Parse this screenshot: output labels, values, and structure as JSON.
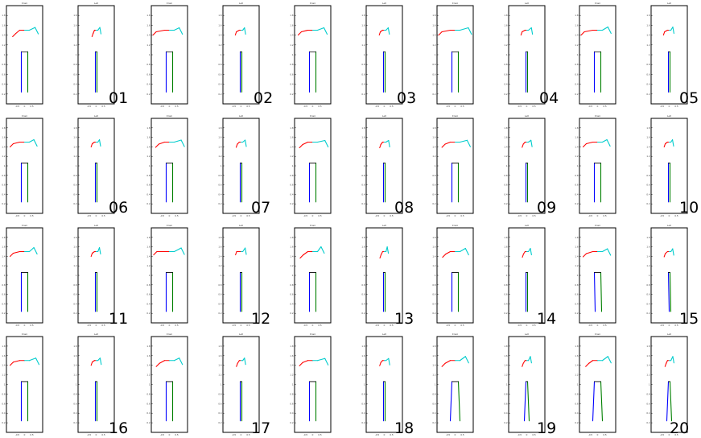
{
  "panel_titles": {
    "front": "Front",
    "left": "Left"
  },
  "x_ticks": [
    "-0.5",
    "0",
    "0.5"
  ],
  "y_ticks": [
    "0.2",
    "0.4",
    "0.6",
    "0.8",
    "1",
    "1.2",
    "1.4",
    "1.6",
    "1.8"
  ],
  "colors": {
    "right_arm": "#ff0000",
    "left_arm": "#00cccc",
    "right_leg": "#0000ff",
    "left_leg": "#008000",
    "pelvis": "#000000"
  },
  "poses": [
    {
      "label": "01",
      "front": {
        "ra": [
          [
            5,
            2
          ],
          [
            40,
            40
          ]
        ],
        "la": [
          [
            5,
            2
          ],
          [
            -15,
            -8
          ]
        ],
        "rl": [
          [
            0,
            0
          ],
          [
            0,
            0
          ]
        ],
        "ll": [
          [
            0,
            0
          ],
          [
            0,
            0
          ]
        ]
      }
    },
    {
      "label": "02",
      "front": {
        "ra": [
          [
            0,
            0
          ],
          [
            -30,
            0
          ]
        ],
        "la": [
          [
            0,
            0
          ],
          [
            -30,
            0
          ]
        ],
        "rl": [
          [
            0,
            0
          ],
          [
            0,
            0
          ]
        ],
        "ll": [
          [
            0,
            0
          ],
          [
            0,
            0
          ]
        ]
      }
    },
    {
      "label": "03",
      "front": {
        "ra": [
          [
            0,
            0
          ],
          [
            0,
            0
          ]
        ],
        "la": [
          [
            0,
            0
          ],
          [
            0,
            0
          ]
        ],
        "rl": [
          [
            0,
            0
          ],
          [
            0,
            0
          ]
        ],
        "ll": [
          [
            0,
            0
          ],
          [
            0,
            0
          ]
        ]
      }
    },
    {
      "label": "04",
      "front": {
        "ra": [
          [
            0,
            0
          ],
          [
            -30,
            0
          ]
        ],
        "la": [
          [
            0,
            0
          ],
          [
            40,
            0
          ]
        ],
        "rl": [
          [
            0,
            0
          ],
          [
            0,
            0
          ]
        ],
        "ll": [
          [
            0,
            0
          ],
          [
            0,
            0
          ]
        ]
      }
    },
    {
      "label": "05",
      "front": {
        "ra": [
          [
            0,
            0
          ],
          [
            -30,
            0
          ]
        ],
        "la": [
          [
            0,
            0
          ],
          [
            -20,
            -20
          ]
        ],
        "rl": [
          [
            0,
            0
          ],
          [
            0,
            0
          ]
        ],
        "ll": [
          [
            0,
            0
          ],
          [
            0,
            0
          ]
        ]
      }
    },
    {
      "label": "06",
      "front": {
        "ra": [
          [
            0,
            0
          ],
          [
            0,
            0
          ]
        ],
        "la": [
          [
            0,
            0
          ],
          [
            -40,
            0
          ]
        ],
        "rl": [
          [
            0,
            0
          ],
          [
            0,
            0
          ]
        ],
        "ll": [
          [
            0,
            0
          ],
          [
            0,
            0
          ]
        ]
      }
    },
    {
      "label": "07",
      "front": {
        "ra": [
          [
            0,
            0
          ],
          [
            10,
            10
          ]
        ],
        "la": [
          [
            0,
            0
          ],
          [
            10,
            10
          ]
        ],
        "rl": [
          [
            0,
            0
          ],
          [
            0,
            0
          ]
        ],
        "ll": [
          [
            0,
            0
          ],
          [
            0,
            0
          ]
        ]
      }
    },
    {
      "label": "08",
      "front": {
        "ra": [
          [
            0,
            0
          ],
          [
            20,
            20
          ]
        ],
        "la": [
          [
            0,
            0
          ],
          [
            20,
            20
          ]
        ],
        "rl": [
          [
            0,
            0
          ],
          [
            0,
            0
          ]
        ],
        "ll": [
          [
            0,
            0
          ],
          [
            0,
            0
          ]
        ]
      }
    },
    {
      "label": "09",
      "front": {
        "ra": [
          [
            0,
            0
          ],
          [
            20,
            10
          ]
        ],
        "la": [
          [
            0,
            0
          ],
          [
            15,
            15
          ]
        ],
        "rl": [
          [
            0,
            0
          ],
          [
            0,
            0
          ]
        ],
        "ll": [
          [
            0,
            0
          ],
          [
            0,
            0
          ]
        ]
      }
    },
    {
      "label": "10",
      "front": {
        "ra": [
          [
            0,
            0
          ],
          [
            0,
            0
          ]
        ],
        "la": [
          [
            0,
            0
          ],
          [
            -40,
            0
          ]
        ],
        "rl": [
          [
            0,
            0
          ],
          [
            0,
            0
          ]
        ],
        "ll": [
          [
            0,
            0
          ],
          [
            0,
            0
          ]
        ]
      }
    },
    {
      "label": "11",
      "front": {
        "ra": [
          [
            -20,
            0
          ],
          [
            0,
            0
          ]
        ],
        "la": [
          [
            0,
            0
          ],
          [
            -40,
            -40
          ]
        ],
        "rl": [
          [
            0,
            0
          ],
          [
            0,
            0
          ]
        ],
        "ll": [
          [
            0,
            0
          ],
          [
            0,
            0
          ]
        ]
      }
    },
    {
      "label": "12",
      "front": {
        "ra": [
          [
            0,
            0
          ],
          [
            -20,
            -40
          ]
        ],
        "la": [
          [
            0,
            0
          ],
          [
            10,
            -30
          ]
        ],
        "rl": [
          [
            0,
            0
          ],
          [
            0,
            0
          ]
        ],
        "ll": [
          [
            0,
            0
          ],
          [
            0,
            0
          ]
        ]
      }
    },
    {
      "label": "13",
      "front": {
        "ra": [
          [
            0,
            0
          ],
          [
            30,
            40
          ]
        ],
        "la": [
          [
            0,
            0
          ],
          [
            -60,
            -60
          ]
        ],
        "rl": [
          [
            0,
            0
          ],
          [
            0,
            0
          ]
        ],
        "ll": [
          [
            0,
            0
          ],
          [
            0,
            0
          ]
        ]
      }
    },
    {
      "label": "14",
      "front": {
        "ra": [
          [
            0,
            0
          ],
          [
            30,
            20
          ]
        ],
        "la": [
          [
            0,
            0
          ],
          [
            -20,
            -20
          ]
        ],
        "rl": [
          [
            0,
            0
          ],
          [
            0,
            0
          ]
        ],
        "ll": [
          [
            0,
            0
          ],
          [
            0,
            0
          ]
        ]
      }
    },
    {
      "label": "15",
      "front": {
        "ra": [
          [
            0,
            0
          ],
          [
            0,
            10
          ]
        ],
        "la": [
          [
            0,
            0
          ],
          [
            -30,
            -10
          ]
        ],
        "rl": [
          [
            5,
            10
          ],
          [
            0,
            0
          ]
        ],
        "ll": [
          [
            5,
            10
          ],
          [
            15,
            20
          ]
        ]
      }
    },
    {
      "label": "16",
      "front": {
        "ra": [
          [
            0,
            0
          ],
          [
            0,
            0
          ]
        ],
        "la": [
          [
            0,
            0
          ],
          [
            0,
            0
          ]
        ],
        "rl": [
          [
            0,
            -10
          ],
          [
            5,
            10
          ]
        ],
        "ll": [
          [
            0,
            0
          ],
          [
            0,
            0
          ]
        ]
      }
    },
    {
      "label": "17",
      "front": {
        "ra": [
          [
            0,
            0
          ],
          [
            20,
            30
          ]
        ],
        "la": [
          [
            0,
            0
          ],
          [
            -30,
            0
          ]
        ],
        "rl": [
          [
            0,
            0
          ],
          [
            0,
            0
          ]
        ],
        "ll": [
          [
            0,
            0
          ],
          [
            0,
            0
          ]
        ]
      }
    },
    {
      "label": "18",
      "front": {
        "ra": [
          [
            0,
            0
          ],
          [
            20,
            10
          ]
        ],
        "la": [
          [
            0,
            0
          ],
          [
            20,
            10
          ]
        ],
        "rl": [
          [
            0,
            0
          ],
          [
            0,
            0
          ]
        ],
        "ll": [
          [
            0,
            0
          ],
          [
            0,
            0
          ]
        ]
      }
    },
    {
      "label": "19",
      "front": {
        "ra": [
          [
            0,
            0
          ],
          [
            20,
            30
          ]
        ],
        "la": [
          [
            0,
            0
          ],
          [
            -20,
            -40
          ]
        ],
        "rl": [
          [
            -10,
            0
          ],
          [
            0,
            0
          ]
        ],
        "ll": [
          [
            10,
            0
          ],
          [
            0,
            0
          ]
        ]
      }
    },
    {
      "label": "20",
      "front": {
        "ra": [
          [
            0,
            0
          ],
          [
            40,
            30
          ]
        ],
        "la": [
          [
            0,
            0
          ],
          [
            -20,
            -40
          ]
        ],
        "rl": [
          [
            -10,
            0
          ],
          [
            0,
            0
          ]
        ],
        "ll": [
          [
            10,
            0
          ],
          [
            0,
            0
          ]
        ]
      }
    }
  ]
}
